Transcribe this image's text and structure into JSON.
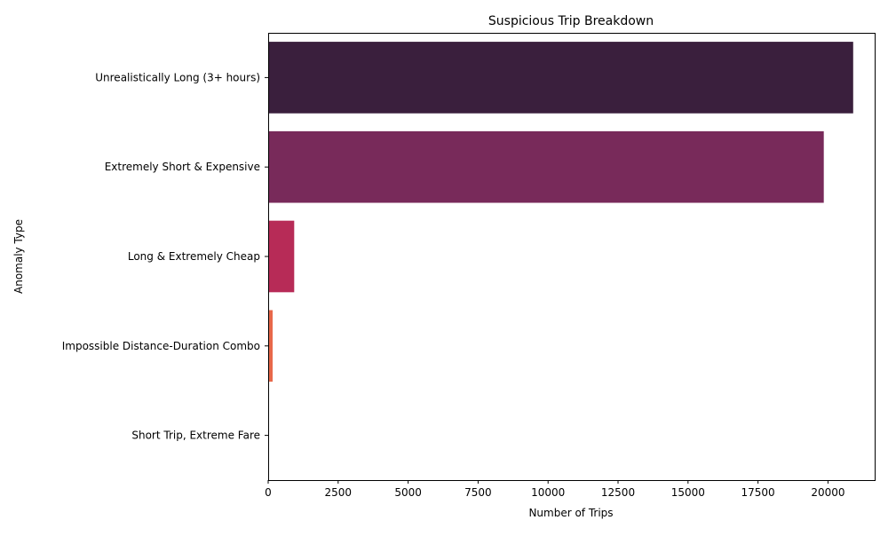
{
  "chart_data": {
    "type": "bar",
    "orientation": "horizontal",
    "title": "Suspicious Trip Breakdown",
    "xlabel": "Number of Trips",
    "ylabel": "Anomaly Type",
    "categories": [
      "Unrealistically Long (3+ hours)",
      "Extremely Short & Expensive",
      "Long & Extremely Cheap",
      "Impossible Distance-Duration Combo",
      "Short Trip, Extreme Fare"
    ],
    "values": [
      20900,
      19850,
      930,
      160,
      5
    ],
    "colors": [
      "#3a1f3d",
      "#782a5a",
      "#b72b57",
      "#e8684a",
      "#f3a37f"
    ],
    "xlim": [
      0,
      21700
    ],
    "xticks": [
      0,
      2500,
      5000,
      7500,
      10000,
      12500,
      15000,
      17500,
      20000
    ],
    "xtick_labels": [
      "0",
      "2500",
      "5000",
      "7500",
      "10000",
      "12500",
      "15000",
      "17500",
      "20000"
    ],
    "grid": false,
    "legend": "none"
  }
}
